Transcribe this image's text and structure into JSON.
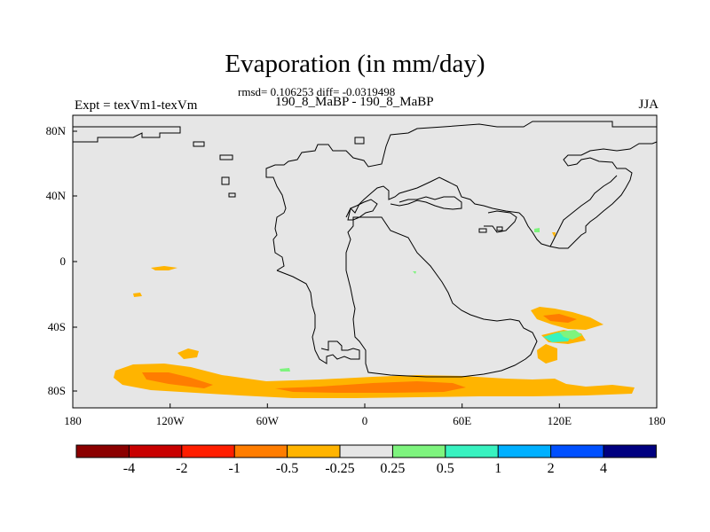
{
  "title": "Evaporation (in mm/day)",
  "stats": "rmsd= 0.106253 diff= -0.0319498",
  "expt_label": "Expt = texVm1-texVm",
  "case_label": "190_8_MaBP - 190_8_MaBP",
  "season": "JJA",
  "colors": {
    "background_field": "#e6e6e6",
    "coastline": "#000000",
    "level_colors": [
      "#8b0000",
      "#c80000",
      "#ff1e00",
      "#ff7d00",
      "#ffb400",
      "#e6e6e6",
      "#7ef47e",
      "#38f2c0",
      "#00b0ff",
      "#0050ff",
      "#000080"
    ]
  },
  "map": {
    "lon_ticks": [
      "180",
      "120W",
      "60W",
      "0",
      "60E",
      "120E",
      "180"
    ],
    "lat_ticks": [
      "80N",
      "40N",
      "0",
      "40S",
      "80S"
    ]
  },
  "colorbar": {
    "labels": [
      "-4",
      "-2",
      "-1",
      "-0.5",
      "-0.25",
      "0.25",
      "0.5",
      "1",
      "2",
      "4"
    ]
  }
}
